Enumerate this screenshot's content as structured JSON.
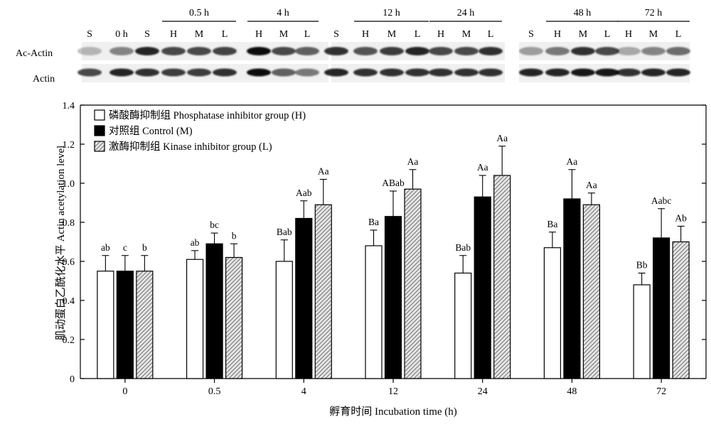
{
  "blot": {
    "row_labels": [
      "Ac-Actin",
      "Actin"
    ],
    "groups": [
      {
        "label": "",
        "lanes": [
          "S",
          "0 h"
        ]
      },
      {
        "label": "0.5 h",
        "lanes": [
          "S",
          "H",
          "M",
          "L"
        ]
      },
      {
        "label": "4 h",
        "lanes": [
          "H",
          "M",
          "L"
        ]
      },
      {
        "label": "12 h",
        "lanes": [
          "S",
          "H",
          "M",
          "L"
        ]
      },
      {
        "label": "24 h",
        "lanes": [
          "H",
          "M",
          "L"
        ]
      },
      {
        "label": "48 h",
        "lanes": [
          "S",
          "H",
          "M",
          "L"
        ]
      },
      {
        "label": "72 h",
        "lanes": [
          "H",
          "M",
          "L"
        ]
      }
    ]
  },
  "chart_data": {
    "type": "bar",
    "title": "",
    "xlabel": "孵育时间 Incubation time (h)",
    "ylabel": "肌动蛋白乙酰化水平 Actin acetylation level",
    "ylim": [
      0,
      1.4
    ],
    "yticks": [
      "0",
      "0.2",
      "0.4",
      "0.6",
      "0.8",
      "1.0",
      "1.2",
      "1.4"
    ],
    "categories": [
      "0",
      "0.5",
      "4",
      "12",
      "24",
      "48",
      "72"
    ],
    "legend_position": "top-left",
    "series": [
      {
        "name": "磷酸酶抑制组 Phosphatase inhibitor group (H)",
        "fill": "white",
        "values": [
          0.55,
          0.61,
          0.6,
          0.68,
          0.54,
          0.67,
          0.48
        ],
        "errors": [
          0.08,
          0.045,
          0.11,
          0.08,
          0.09,
          0.08,
          0.06
        ],
        "labels": [
          "ab",
          "ab",
          "Bab",
          "Ba",
          "Bab",
          "Ba",
          "Bb"
        ]
      },
      {
        "name": "对照组 Control (M)",
        "fill": "black",
        "values": [
          0.55,
          0.69,
          0.82,
          0.83,
          0.93,
          0.92,
          0.72
        ],
        "errors": [
          0.08,
          0.055,
          0.09,
          0.13,
          0.11,
          0.15,
          0.15
        ],
        "labels": [
          "c",
          "bc",
          "Aab",
          "ABab",
          "Aa",
          "Aa",
          "Aabc"
        ]
      },
      {
        "name": "激酶抑制组 Kinase inhibitor group (L)",
        "fill": "hatched",
        "values": [
          0.55,
          0.62,
          0.89,
          0.97,
          1.04,
          0.89,
          0.7
        ],
        "errors": [
          0.08,
          0.07,
          0.13,
          0.1,
          0.15,
          0.06,
          0.08
        ],
        "labels": [
          "b",
          "b",
          "Aa",
          "Aa",
          "Aa",
          "Aa",
          "Ab"
        ]
      }
    ]
  },
  "colors": {
    "axis": "#000000",
    "bar_black": "#000000",
    "hatch": "#555555"
  }
}
